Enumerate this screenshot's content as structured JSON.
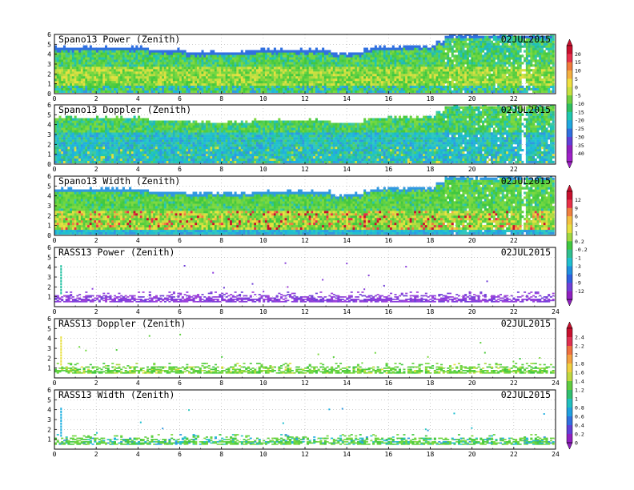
{
  "chart_data": [
    {
      "type": "heatmap",
      "title": "Spano13 Power (Zenith)",
      "date": "02JUL2015",
      "xlim": [
        0,
        24
      ],
      "ylim": [
        0,
        6
      ],
      "x_ticks": [
        0,
        2,
        4,
        6,
        8,
        10,
        12,
        14,
        16,
        18,
        20,
        22
      ],
      "y_ticks": [
        0,
        1,
        2,
        3,
        4,
        5,
        6
      ],
      "grid": true,
      "field": "spano_power",
      "colorbar": {
        "labels": [
          "20",
          "15",
          "10",
          "5",
          "0",
          "-5",
          "-10",
          "-15",
          "-20",
          "-25",
          "-30",
          "-35",
          "-40"
        ]
      }
    },
    {
      "type": "heatmap",
      "title": "Spano13 Doppler (Zenith)",
      "date": "02JUL2015",
      "xlim": [
        0,
        24
      ],
      "ylim": [
        0,
        6
      ],
      "x_ticks": [
        0,
        2,
        4,
        6,
        8,
        10,
        12,
        14,
        16,
        18,
        20,
        22
      ],
      "y_ticks": [
        0,
        1,
        2,
        3,
        4,
        5,
        6
      ],
      "grid": true,
      "field": "spano_doppler",
      "colorbar": null
    },
    {
      "type": "heatmap",
      "title": "Spano13 Width (Zenith)",
      "date": "02JUL2015",
      "xlim": [
        0,
        24
      ],
      "ylim": [
        0,
        6
      ],
      "x_ticks": [
        0,
        2,
        4,
        6,
        8,
        10,
        12,
        14,
        16,
        18,
        20,
        22
      ],
      "y_ticks": [
        0,
        1,
        2,
        3,
        4,
        5,
        6
      ],
      "grid": true,
      "field": "spano_width",
      "colorbar": {
        "labels": [
          "12",
          "9",
          "6",
          "3",
          "1",
          "0.2",
          "-0.2",
          "-1",
          "-3",
          "-6",
          "-9",
          "-12"
        ]
      }
    },
    {
      "type": "heatmap",
      "title": "RASS13 Power (Zenith)",
      "date": "02JUL2015",
      "xlim": [
        0,
        24
      ],
      "ylim": [
        0,
        6
      ],
      "x_ticks": [
        0,
        2,
        4,
        6,
        8,
        10,
        12,
        14,
        16,
        18,
        20,
        22,
        24
      ],
      "y_ticks": [
        1,
        2,
        3,
        4,
        5,
        6
      ],
      "grid": true,
      "field": "rass_power",
      "colorbar": null
    },
    {
      "type": "heatmap",
      "title": "RASS13 Doppler (Zenith)",
      "date": "02JUL2015",
      "xlim": [
        0,
        24
      ],
      "ylim": [
        0,
        6
      ],
      "x_ticks": [
        0,
        2,
        4,
        6,
        8,
        10,
        12,
        14,
        16,
        18,
        20,
        22,
        24
      ],
      "y_ticks": [
        1,
        2,
        3,
        4,
        5,
        6
      ],
      "grid": true,
      "field": "rass_doppler",
      "colorbar": {
        "labels": [
          "2.4",
          "2.2",
          "2",
          "1.8",
          "1.6",
          "1.4",
          "1.2",
          "1",
          "0.8",
          "0.6",
          "0.4",
          "0.2",
          "0"
        ]
      }
    },
    {
      "type": "heatmap",
      "title": "RASS13 Width (Zenith)",
      "date": "02JUL2015",
      "xlim": [
        0,
        24
      ],
      "ylim": [
        0,
        6
      ],
      "x_ticks": [
        0,
        2,
        4,
        6,
        8,
        10,
        12,
        14,
        16,
        18,
        20,
        22,
        24
      ],
      "y_ticks": [
        1,
        2,
        3,
        4,
        5,
        6
      ],
      "grid": true,
      "field": "rass_width",
      "colorbar": null
    }
  ],
  "colorbar_palettes": {
    "power": [
      "#c8102e",
      "#e8304a",
      "#f07c3c",
      "#f4b040",
      "#f0e040",
      "#c8e040",
      "#70d040",
      "#30c060",
      "#20c8b0",
      "#20a8e0",
      "#3070e0",
      "#6040d8",
      "#9020c0",
      "#a020c8"
    ],
    "width": [
      "#c8102e",
      "#e83048",
      "#f08040",
      "#f4c040",
      "#e8e040",
      "#a0d840",
      "#40c840",
      "#30c090",
      "#20c0d0",
      "#2090e0",
      "#3060e0",
      "#7040d8",
      "#9020c0"
    ],
    "rass": [
      "#c8102e",
      "#e03050",
      "#f07040",
      "#f4a040",
      "#f0d040",
      "#c0d840",
      "#60cc40",
      "#30c070",
      "#20c0c0",
      "#20a0e0",
      "#3070e0",
      "#6040d8",
      "#9020c0"
    ]
  }
}
